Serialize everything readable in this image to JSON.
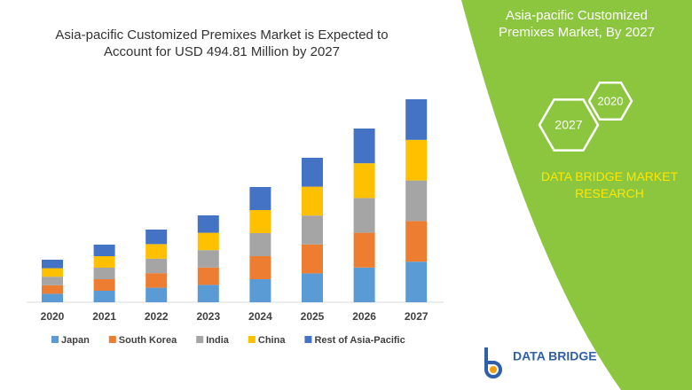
{
  "chart_data": {
    "type": "stacked-bar",
    "title": "Asia-pacific Customized Premixes Market is Expected to Account for USD 494.81 Million by 2027",
    "categories": [
      "2020",
      "2021",
      "2022",
      "2023",
      "2024",
      "2025",
      "2026",
      "2027"
    ],
    "series": [
      {
        "name": "Japan",
        "color": "#5b9bd5",
        "values": [
          9.6,
          13,
          16.4,
          19.6,
          26,
          32.6,
          39.2,
          45.8
        ]
      },
      {
        "name": "South Korea",
        "color": "#ed7d31",
        "values": [
          9.6,
          13,
          16.4,
          19.6,
          26,
          32.6,
          39.2,
          45.8
        ]
      },
      {
        "name": "India",
        "color": "#a5a5a5",
        "values": [
          9.6,
          13,
          16.4,
          19.6,
          26,
          32.6,
          39.2,
          45.8
        ]
      },
      {
        "name": "China",
        "color": "#ffc000",
        "values": [
          9.6,
          13,
          16.4,
          19.6,
          26,
          32.6,
          39.2,
          45.8
        ]
      },
      {
        "name": "Rest of Asia-Pacific",
        "color": "#4472c4",
        "values": [
          9.6,
          13,
          16.4,
          19.6,
          26,
          32.6,
          39.2,
          45.8
        ]
      }
    ]
  },
  "panel": {
    "title": "Asia-pacific Customized Premixes Market, By 2027",
    "hexagons": [
      "2027",
      "2020"
    ],
    "company": "DATA BRIDGE MARKET RESEARCH"
  },
  "logo": "DATA BRIDGE"
}
